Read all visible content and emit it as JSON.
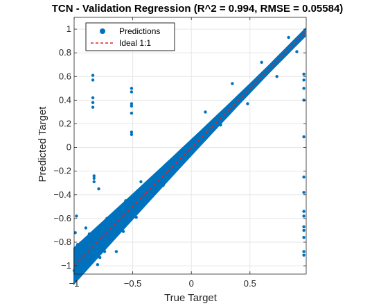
{
  "chart_data": {
    "type": "scatter",
    "title": "TCN - Validation Regression (R^2 = 0.994, RMSE = 0.05584)",
    "xlabel": "True Target",
    "ylabel": "Predicted Target",
    "xlim": [
      -1,
      0.98
    ],
    "ylim": [
      -1.07,
      1.1
    ],
    "xticks": [
      -1,
      -0.5,
      0,
      0.5
    ],
    "xtick_labels": [
      "−1",
      "−0.5",
      "0",
      "0.5"
    ],
    "yticks": [
      -1,
      -0.8,
      -0.6,
      -0.4,
      -0.2,
      0,
      0.2,
      0.4,
      0.6,
      0.8,
      1
    ],
    "ytick_labels": [
      "−1",
      "−0.8",
      "−0.6",
      "−0.4",
      "−0.2",
      "0",
      "0.2",
      "0.4",
      "0.6",
      "0.8",
      "1"
    ],
    "grid": true,
    "legend_position": "top-left",
    "series": [
      {
        "name": "Predictions",
        "kind": "scatter",
        "color": "#0072BD",
        "points": [
          [
            -0.84,
            0.61
          ],
          [
            -0.84,
            0.57
          ],
          [
            -0.84,
            0.42
          ],
          [
            -0.84,
            0.38
          ],
          [
            -0.84,
            0.34
          ],
          [
            -0.51,
            0.5
          ],
          [
            -0.51,
            0.47
          ],
          [
            -0.51,
            0.37
          ],
          [
            -0.51,
            0.35
          ],
          [
            -0.51,
            0.29
          ],
          [
            -0.51,
            0.13
          ],
          [
            -0.51,
            0.11
          ],
          [
            0.96,
            0.62
          ],
          [
            0.96,
            0.57
          ],
          [
            0.96,
            0.5
          ],
          [
            0.96,
            0.4
          ],
          [
            0.96,
            0.09
          ],
          [
            0.96,
            -0.25
          ],
          [
            0.96,
            -0.38
          ],
          [
            0.96,
            -0.54
          ],
          [
            0.96,
            -0.58
          ],
          [
            0.96,
            -0.67
          ],
          [
            0.96,
            -0.7
          ],
          [
            0.96,
            -0.76
          ],
          [
            0.96,
            -0.88
          ],
          [
            0.96,
            -0.91
          ],
          [
            -0.83,
            -0.24
          ],
          [
            -0.83,
            -0.26
          ],
          [
            -0.83,
            -0.29
          ],
          [
            -0.79,
            -0.35
          ],
          [
            -0.98,
            -0.58
          ],
          [
            -0.99,
            -0.72
          ],
          [
            -0.97,
            -0.82
          ],
          [
            -1.0,
            -1.04
          ],
          [
            -0.93,
            -0.99
          ],
          [
            -0.92,
            -0.84
          ],
          [
            -0.9,
            -0.68
          ],
          [
            -0.87,
            -0.73
          ],
          [
            -0.8,
            -0.99
          ],
          [
            -0.78,
            -0.93
          ],
          [
            -0.74,
            -0.88
          ],
          [
            -0.72,
            -0.6
          ],
          [
            -0.64,
            -0.88
          ],
          [
            -0.66,
            -0.75
          ],
          [
            -0.58,
            -0.71
          ],
          [
            -0.56,
            -0.45
          ],
          [
            -0.47,
            -0.59
          ],
          [
            -0.43,
            -0.29
          ],
          [
            -0.33,
            -0.41
          ],
          [
            -0.24,
            -0.32
          ],
          [
            0.12,
            0.3
          ],
          [
            0.25,
            0.19
          ],
          [
            0.35,
            0.54
          ],
          [
            0.48,
            0.37
          ],
          [
            0.6,
            0.72
          ],
          [
            0.73,
            0.6
          ],
          [
            0.83,
            0.93
          ],
          [
            0.9,
            0.81
          ]
        ]
      },
      {
        "name": "Ideal 1:1",
        "kind": "line",
        "color": "#D62728",
        "dash": true,
        "points": [
          [
            -1,
            -1
          ],
          [
            0.98,
            0.98
          ]
        ]
      }
    ]
  }
}
